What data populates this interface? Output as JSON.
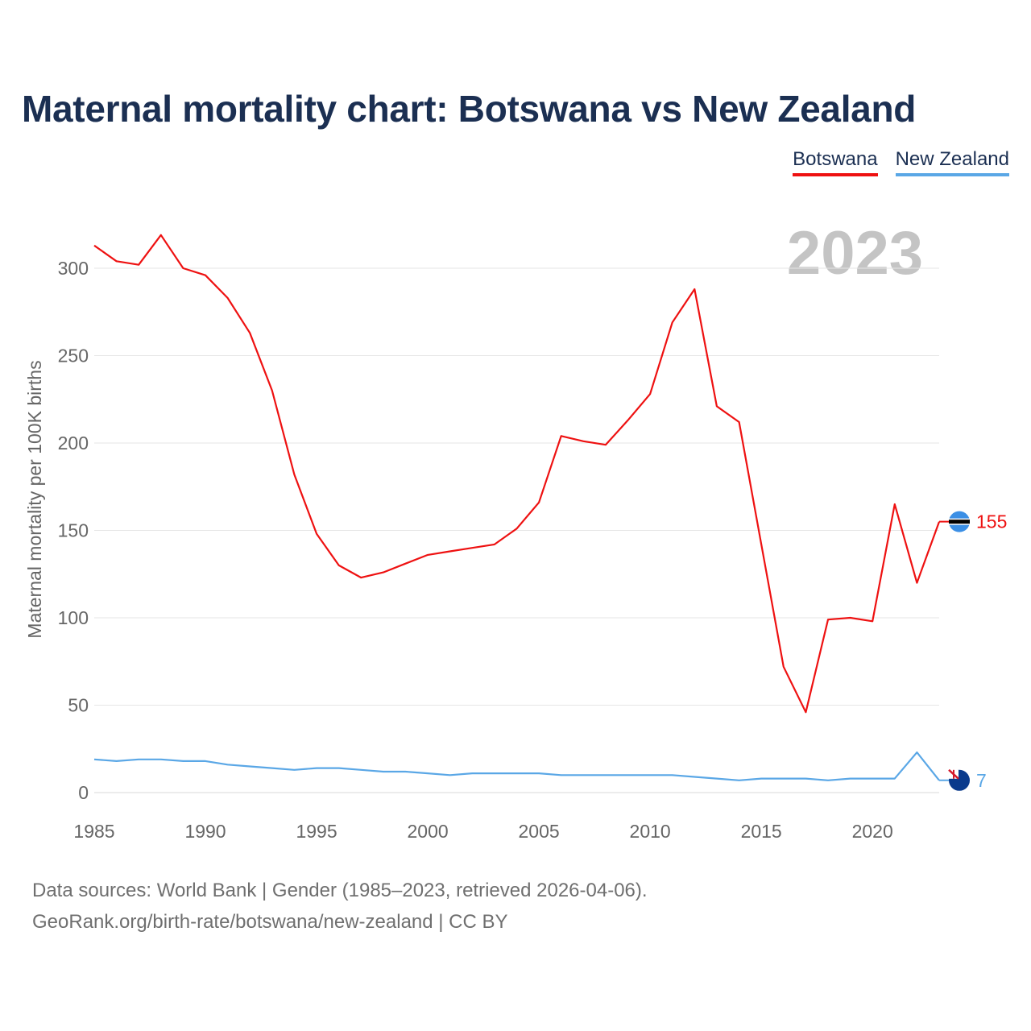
{
  "chart_data": {
    "type": "line",
    "title": "Maternal mortality chart: Botswana vs New Zealand",
    "ylabel": "Maternal mortality per 100K births",
    "xlabel": "",
    "year_label": "2023",
    "x": [
      1985,
      1986,
      1987,
      1988,
      1989,
      1990,
      1991,
      1992,
      1993,
      1994,
      1995,
      1996,
      1997,
      1998,
      1999,
      2000,
      2001,
      2002,
      2003,
      2004,
      2005,
      2006,
      2007,
      2008,
      2009,
      2010,
      2011,
      2012,
      2013,
      2014,
      2015,
      2016,
      2017,
      2018,
      2019,
      2020,
      2021,
      2022,
      2023
    ],
    "xlim": [
      1985,
      2023
    ],
    "ylim": [
      0,
      320
    ],
    "x_ticks": [
      1985,
      1990,
      1995,
      2000,
      2005,
      2010,
      2015,
      2020
    ],
    "y_ticks": [
      0,
      50,
      100,
      150,
      200,
      250,
      300
    ],
    "grid": true,
    "legend_position": "top-right",
    "series": [
      {
        "name": "Botswana",
        "color": "#ee1111",
        "end_label": "155",
        "values": [
          313,
          304,
          302,
          319,
          300,
          296,
          283,
          263,
          230,
          182,
          148,
          130,
          123,
          126,
          131,
          136,
          138,
          140,
          142,
          151,
          166,
          204,
          201,
          199,
          213,
          228,
          269,
          288,
          221,
          212,
          142,
          72,
          46,
          99,
          100,
          98,
          165,
          120,
          155
        ]
      },
      {
        "name": "New Zealand",
        "color": "#5aa7e6",
        "end_label": "7",
        "values": [
          19,
          18,
          19,
          19,
          18,
          18,
          16,
          15,
          14,
          13,
          14,
          14,
          13,
          12,
          12,
          11,
          10,
          11,
          11,
          11,
          11,
          10,
          10,
          10,
          10,
          10,
          10,
          9,
          8,
          7,
          8,
          8,
          8,
          7,
          8,
          8,
          8,
          23,
          7
        ]
      }
    ]
  },
  "legend": {
    "items": [
      {
        "label": "Botswana",
        "color": "#ee1111"
      },
      {
        "label": "New Zealand",
        "color": "#5aa7e6"
      }
    ]
  },
  "source": {
    "line1": "Data sources: World Bank | Gender (1985–2023, retrieved 2026-04-06).",
    "line2": "GeoRank.org/birth-rate/botswana/new-zealand | CC BY"
  },
  "colors": {
    "title": "#1b2f52",
    "axis_text": "#666666",
    "grid": "#e6e6e6",
    "year_watermark": "#c4c4c4"
  }
}
